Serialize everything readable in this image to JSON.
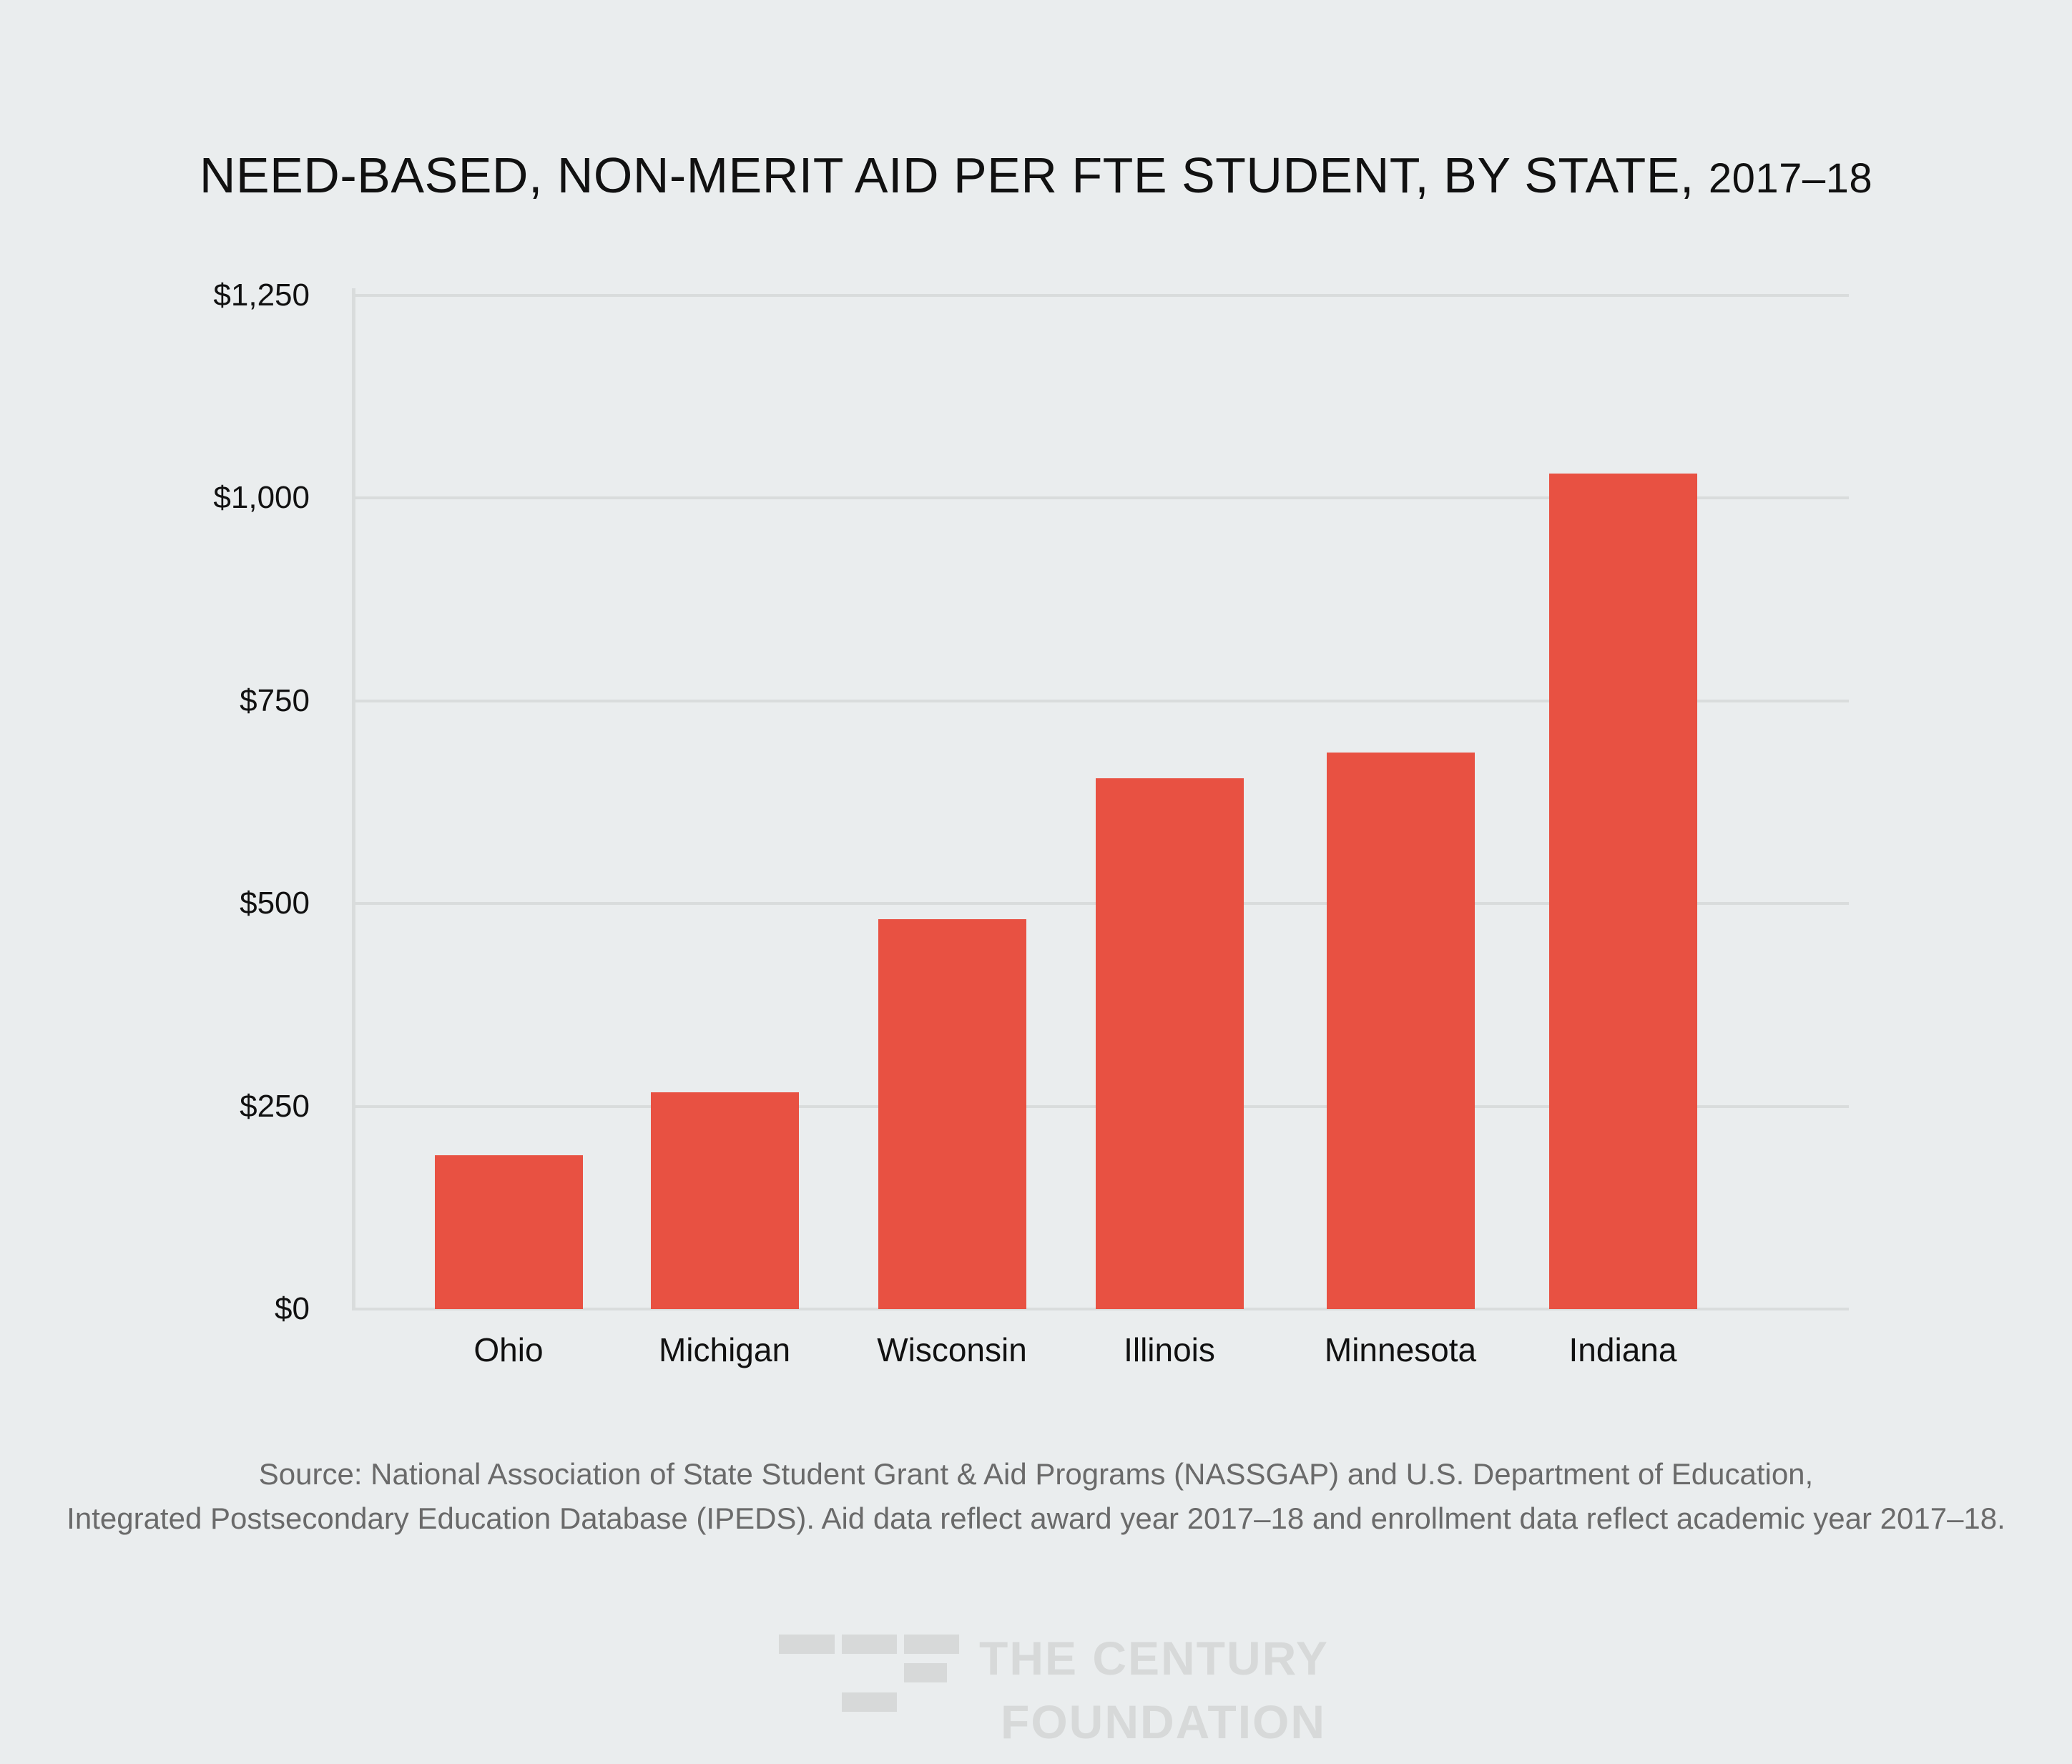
{
  "title": {
    "main": "NEED-BASED, NON-MERIT AID PER FTE STUDENT, BY STATE,",
    "year": "2017–18"
  },
  "colors": {
    "background": "#EAEDEE",
    "bar": "#E85142",
    "gridline": "#D9DCDC",
    "source_text": "#6A6A6A",
    "logo": "#D7D9D9"
  },
  "y_axis": {
    "ticks": [
      "$0",
      "$250",
      "$500",
      "$750",
      "$1,000",
      "$1,250"
    ]
  },
  "x_axis": {
    "labels": [
      "Ohio",
      "Michigan",
      "Wisconsin",
      "Illinois",
      "Minnesota",
      "Indiana"
    ]
  },
  "source": {
    "line1": "Source: National Association of State Student Grant & Aid Programs (NASSGAP) and U.S. Department of Education,",
    "line2": "Integrated Postsecondary Education Database (IPEDS). Aid data reflect award year 2017–18 and enrollment data reflect academic year 2017–18."
  },
  "logo": {
    "line1": "THE CENTURY",
    "line2": "FOUNDATION"
  },
  "chart_data": {
    "type": "bar",
    "title": "NEED-BASED, NON-MERIT AID PER FTE STUDENT, BY STATE, 2017–18",
    "categories": [
      "Ohio",
      "Michigan",
      "Wisconsin",
      "Illinois",
      "Minnesota",
      "Indiana"
    ],
    "values": [
      190,
      267,
      481,
      655,
      686,
      1030
    ],
    "xlabel": "",
    "ylabel": "",
    "ylim": [
      0,
      1250
    ],
    "yticks": [
      0,
      250,
      500,
      750,
      1000,
      1250
    ],
    "ytick_format": "$",
    "grid": true,
    "legend": null
  }
}
